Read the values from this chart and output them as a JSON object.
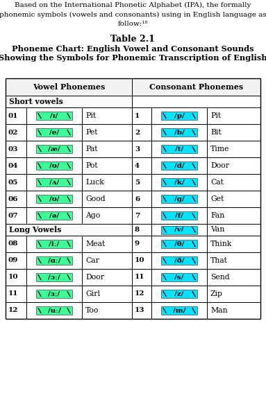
{
  "title1": "Table 2.1",
  "title2": "Phoneme Chart: English Vowel and Consonant Sounds",
  "title3": "Showing the Symbols for Phonemic Transcription of English",
  "intro_lines": [
    "Based on the International Phonetic Alphabet (IPA), the formally",
    "phonemic symbols (vowels and consonants) using in English language as",
    "follow:¹⁸"
  ],
  "vowel_header": "Vowel Phonemes",
  "consonant_header": "Consonant Phonemes",
  "short_vowels_label": "Short vowels",
  "long_vowels_label": "Long Vowels",
  "vowel_color": "#3dff9a",
  "consonant_color": "#00e5ff",
  "vowel_rows": [
    {
      "num": "01",
      "symbol": "/ɪ/",
      "word": "Pit",
      "ul": 1
    },
    {
      "num": "02",
      "symbol": "/e/",
      "word": "Pet",
      "ul": 1
    },
    {
      "num": "03",
      "symbol": "/æ/",
      "word": "Pat",
      "ul": 1
    },
    {
      "num": "04",
      "symbol": "/ʊ/",
      "word": "Pot",
      "ul": 1
    },
    {
      "num": "05",
      "symbol": "/ʌ/",
      "word": "Luck",
      "ul": 2
    },
    {
      "num": "06",
      "symbol": "/ʊ/",
      "word": "Good",
      "ul": 2
    },
    {
      "num": "07",
      "symbol": "/ə/",
      "word": "Ago",
      "ul": 0
    },
    {
      "num": "08",
      "symbol": "/iː/",
      "word": "Meat",
      "ul": 2
    },
    {
      "num": "09",
      "symbol": "/ɑː/",
      "word": "Car",
      "ul": 2
    },
    {
      "num": "10",
      "symbol": "/ɔː/",
      "word": "Door",
      "ul": 2
    },
    {
      "num": "11",
      "symbol": "/ɜː/",
      "word": "Girl",
      "ul": 2
    },
    {
      "num": "12",
      "symbol": "/uː/",
      "word": "Too",
      "ul": 1
    }
  ],
  "consonant_rows": [
    {
      "num": "1",
      "symbol": "/p/",
      "word": "Pit",
      "ul": 0
    },
    {
      "num": "2",
      "symbol": "/b/",
      "word": "Bit",
      "ul": 1
    },
    {
      "num": "3",
      "symbol": "/t/",
      "word": "Time",
      "ul": 1
    },
    {
      "num": "4",
      "symbol": "/d/",
      "word": "Door",
      "ul": 1
    },
    {
      "num": "5",
      "symbol": "/k/",
      "word": "Cat",
      "ul": 1
    },
    {
      "num": "6",
      "symbol": "/ɡ/",
      "word": "Get",
      "ul": 1
    },
    {
      "num": "7",
      "symbol": "/f/",
      "word": "Fan",
      "ul": 1
    },
    {
      "num": "8",
      "symbol": "/v/",
      "word": "Van",
      "ul": 1
    },
    {
      "num": "9",
      "symbol": "/θ/",
      "word": "Think",
      "ul": 2
    },
    {
      "num": "10",
      "symbol": "/ð/",
      "word": "That",
      "ul": 2
    },
    {
      "num": "11",
      "symbol": "/s/",
      "word": "Send",
      "ul": 1
    },
    {
      "num": "12",
      "symbol": "/z/",
      "word": "Zip",
      "ul": 1
    },
    {
      "num": "13",
      "symbol": "/m/",
      "word": "Man",
      "ul": 1
    }
  ],
  "bg_color": "#FFFFFF"
}
